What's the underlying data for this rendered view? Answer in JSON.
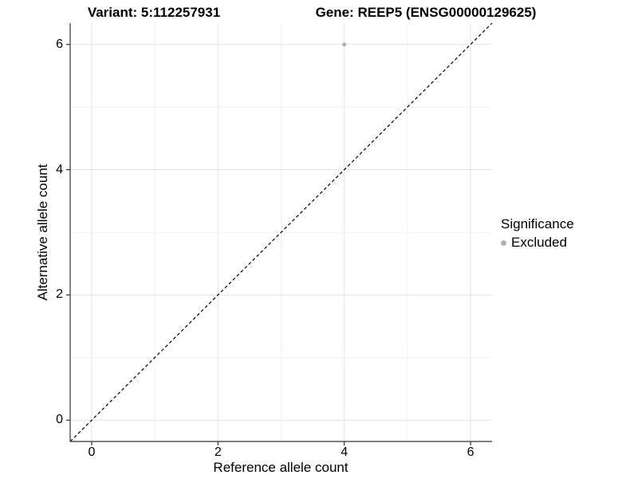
{
  "title": {
    "variant": "Variant: 5:112257931",
    "gene": "Gene: REEP5 (ENSG00000129625)"
  },
  "chart_data": {
    "type": "scatter",
    "xlabel": "Reference allele count",
    "ylabel": "Alternative allele count",
    "xlim": [
      -0.34,
      6.34
    ],
    "ylim": [
      -0.34,
      6.34
    ],
    "x_ticks": [
      0,
      2,
      4,
      6
    ],
    "y_ticks": [
      0,
      2,
      4,
      6
    ],
    "x_minor_ticks": [
      1,
      3,
      5
    ],
    "y_minor_ticks": [
      1,
      3,
      5
    ],
    "grid": "major+minor",
    "points": [
      {
        "x": 4,
        "y": 6,
        "series": "Excluded"
      }
    ],
    "reference_line": {
      "type": "identity",
      "slope": 1,
      "intercept": 0,
      "style": "dashed"
    },
    "legend": {
      "title": "Significance",
      "position": "right",
      "items": [
        {
          "label": "Excluded",
          "color": "#b3b3b3"
        }
      ]
    },
    "colors": {
      "background": "#ffffff",
      "point": "#b3b3b3",
      "axis": "#333333",
      "grid_major": "#e4e4e4",
      "grid_minor": "#f0f0f0",
      "dashed_line": "#000000",
      "text": "#000000"
    }
  }
}
